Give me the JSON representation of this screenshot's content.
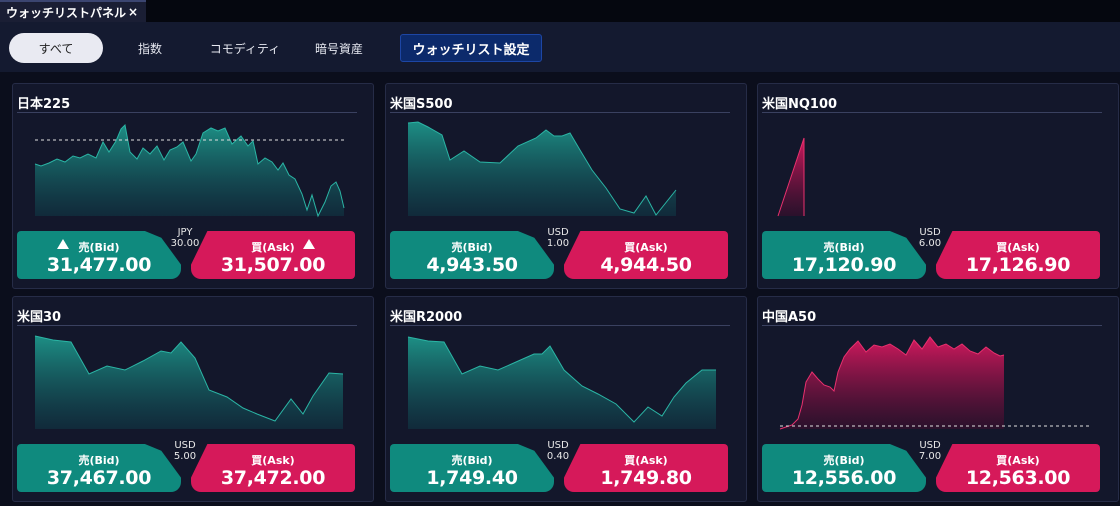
{
  "window": {
    "tab_title": "ウォッチリストパネル",
    "close_symbol": "×"
  },
  "filters": {
    "all": "すべて",
    "index": "指数",
    "commodity": "コモディティ",
    "crypto": "暗号資産",
    "settings": "ウォッチリスト設定"
  },
  "colors": {
    "up": "#0f8a7e",
    "down": "#d6195a",
    "background": "#0b0e1c"
  },
  "panels": [
    {
      "title": "日本225",
      "currency": "JPY",
      "spread": "30.00",
      "bid_label": "売(Bid)",
      "ask_label": "買(Ask)",
      "bid": "31,477.00",
      "ask": "31,507.00",
      "bid_arrow": "triangle-up-icon",
      "ask_arrow": "triangle-up-icon",
      "chart_color": "teal",
      "prev_close_line": true
    },
    {
      "title": "米国S500",
      "currency": "USD",
      "spread": "1.00",
      "bid_label": "売(Bid)",
      "ask_label": "買(Ask)",
      "bid": "4,943.50",
      "ask": "4,944.50",
      "chart_color": "teal"
    },
    {
      "title": "米国NQ100",
      "currency": "USD",
      "spread": "6.00",
      "bid_label": "売(Bid)",
      "ask_label": "買(Ask)",
      "bid": "17,120.90",
      "ask": "17,126.90",
      "chart_color": "crimson"
    },
    {
      "title": "米国30",
      "currency": "USD",
      "spread": "5.00",
      "bid_label": "売(Bid)",
      "ask_label": "買(Ask)",
      "bid": "37,467.00",
      "ask": "37,472.00",
      "chart_color": "teal"
    },
    {
      "title": "米国R2000",
      "currency": "USD",
      "spread": "0.40",
      "bid_label": "売(Bid)",
      "ask_label": "買(Ask)",
      "bid": "1,749.40",
      "ask": "1,749.80",
      "chart_color": "teal"
    },
    {
      "title": "中国A50",
      "currency": "USD",
      "spread": "7.00",
      "bid_label": "売(Bid)",
      "ask_label": "買(Ask)",
      "bid": "12,556.00",
      "ask": "12,563.00",
      "chart_color": "crimson",
      "prev_close_line": true
    }
  ]
}
